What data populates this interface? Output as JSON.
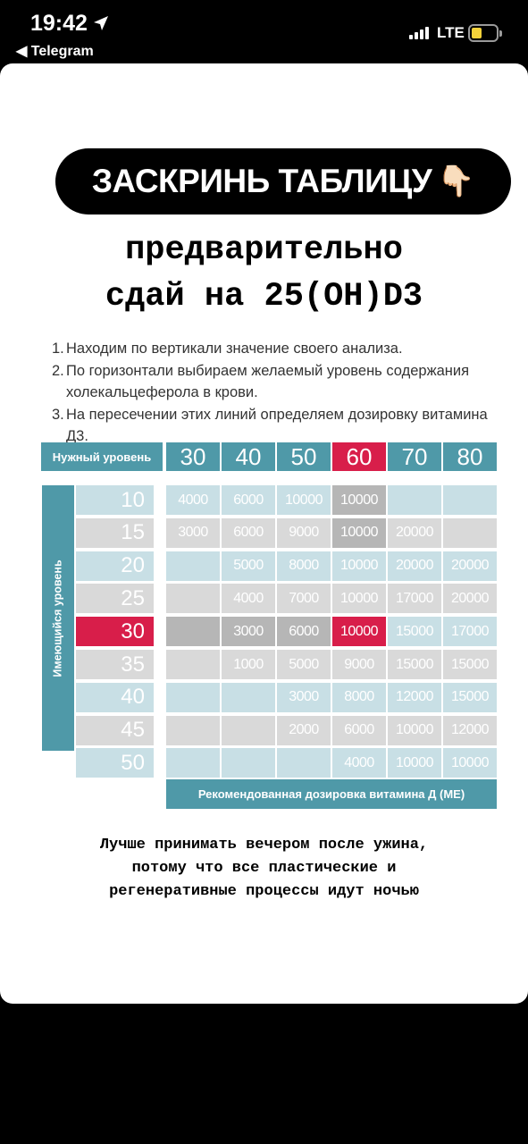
{
  "status_bar": {
    "time": "19:42",
    "back_label": "◀ Telegram",
    "network": "LTE",
    "battery_color": "#f4d23a"
  },
  "post": {
    "pill_text": "ЗАСКРИНЬ ТАБЛИЦУ",
    "pill_emoji": "👇🏻",
    "title_line1": "предварительно",
    "title_line2": "сдай на 25(OH)D3",
    "instructions": [
      {
        "num": "1.",
        "text": "Находим по вертикали значение своего анализа."
      },
      {
        "num": "2.",
        "text": "По горизонтали выбираем желаемый уровень содержания холекальцеферола в крови."
      },
      {
        "num": "3.",
        "text": "На пересечении этих линий определяем дозировку витамина Д3."
      }
    ],
    "note_lines": [
      "Лучше принимать вечером после ужина,",
      "потому что все пластические и",
      "регенеративные процессы идут ночью"
    ]
  },
  "table": {
    "header_label": "Нужный уровень",
    "side_label": "Имеющийся уровень",
    "footer_label": "Рекомендованная дозировка витамина Д (МЕ)",
    "columns": [
      "30",
      "40",
      "50",
      "60",
      "70",
      "80"
    ],
    "highlight_column": "60",
    "highlight_row": "30",
    "rows": [
      {
        "level": "10",
        "cells": [
          "4000",
          "6000",
          "10000",
          "10000",
          "",
          ""
        ]
      },
      {
        "level": "15",
        "cells": [
          "3000",
          "6000",
          "9000",
          "10000",
          "20000",
          ""
        ]
      },
      {
        "level": "20",
        "cells": [
          "",
          "5000",
          "8000",
          "10000",
          "20000",
          "20000"
        ]
      },
      {
        "level": "25",
        "cells": [
          "",
          "4000",
          "7000",
          "10000",
          "17000",
          "20000"
        ]
      },
      {
        "level": "30",
        "cells": [
          "",
          "3000",
          "6000",
          "10000",
          "15000",
          "17000"
        ]
      },
      {
        "level": "35",
        "cells": [
          "",
          "1000",
          "5000",
          "9000",
          "15000",
          "15000"
        ]
      },
      {
        "level": "40",
        "cells": [
          "",
          "",
          "3000",
          "8000",
          "12000",
          "15000"
        ]
      },
      {
        "level": "45",
        "cells": [
          "",
          "",
          "2000",
          "6000",
          "10000",
          "12000"
        ]
      },
      {
        "level": "50",
        "cells": [
          "",
          "",
          "",
          "4000",
          "10000",
          "10000"
        ]
      }
    ],
    "colors": {
      "teal": "#4f99a8",
      "accent_red": "#d81e4a",
      "light_blue": "#c8dfe5",
      "light_gray": "#d9d9d9",
      "dark_gray": "#b6b6b6"
    }
  }
}
